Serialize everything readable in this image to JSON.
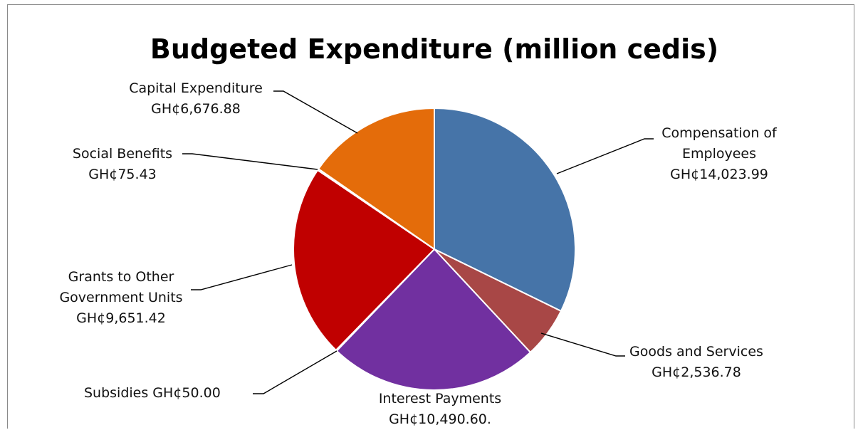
{
  "chart_data": {
    "type": "pie",
    "title": "Budgeted Expenditure (million cedis)",
    "start_angle_deg": 0,
    "direction": "clockwise",
    "slices": [
      {
        "name": "Compensation of Employees",
        "value": 14023.99,
        "color": "#4674A8",
        "label_lines": [
          "Compensation of",
          "Employees",
          "GH¢14,023.99"
        ]
      },
      {
        "name": "Goods and Services",
        "value": 2536.78,
        "color": "#A84746",
        "label_lines": [
          "Goods and Services",
          "GH¢2,536.78"
        ]
      },
      {
        "name": "Interest Payments",
        "value": 10490.6,
        "color": "#7130A0",
        "label_lines": [
          "Interest Payments",
          "GH¢10,490.60."
        ]
      },
      {
        "name": "Subsidies",
        "value": 50.0,
        "color": "#2F7E9A",
        "label_lines": [
          "Subsidies GH¢50.00"
        ]
      },
      {
        "name": "Grants to Other Government Units",
        "value": 9651.42,
        "color": "#C00000",
        "label_lines": [
          "Grants to Other",
          "Government Units",
          "GH¢9,651.42"
        ]
      },
      {
        "name": "Social Benefits",
        "value": 75.43,
        "color": "#6A8FC0",
        "label_lines": [
          "Social Benefits",
          "GH¢75.43"
        ]
      },
      {
        "name": "Capital Expenditure",
        "value": 6676.88,
        "color": "#E46C0A",
        "label_lines": [
          "Capital Expenditure",
          "GH¢6,676.88"
        ]
      }
    ]
  }
}
